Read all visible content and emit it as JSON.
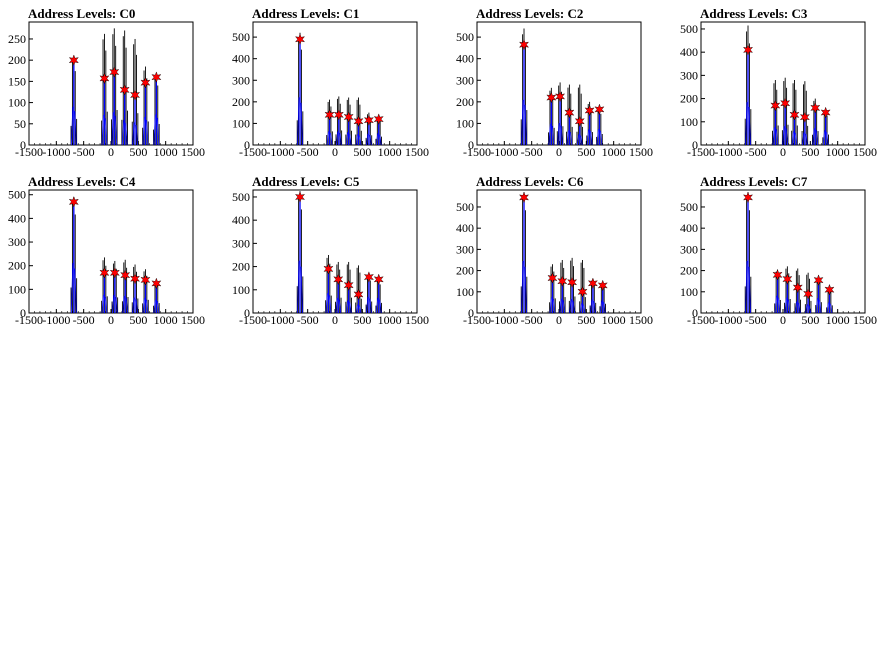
{
  "figure": {
    "background": "#ffffff"
  },
  "colors": {
    "histogram": "#000000",
    "fit": "#0000ff",
    "marker": "#ff0000"
  },
  "chart_data": [
    {
      "type": "histogram",
      "title": "Address Levels: C0",
      "xlim": [
        -1500,
        1500
      ],
      "ylim": [
        0,
        290
      ],
      "x_ticks": [
        -1500,
        -1000,
        -500,
        0,
        500,
        1000,
        1500
      ],
      "x_tick_labels": [
        "-1500",
        "-1000",
        "-500",
        "0",
        "500",
        "1000",
        "1500"
      ],
      "y_ticks": [
        0,
        50,
        100,
        150,
        200,
        250
      ],
      "peaks": [
        {
          "x": -680,
          "hist": 205,
          "fit": 200
        },
        {
          "x": -120,
          "hist": 262,
          "fit": 157
        },
        {
          "x": 60,
          "hist": 275,
          "fit": 172
        },
        {
          "x": 250,
          "hist": 270,
          "fit": 130
        },
        {
          "x": 440,
          "hist": 250,
          "fit": 118
        },
        {
          "x": 630,
          "hist": 185,
          "fit": 147
        },
        {
          "x": 830,
          "hist": 165,
          "fit": 160
        }
      ]
    },
    {
      "type": "histogram",
      "title": "Address Levels: C1",
      "xlim": [
        -1500,
        1500
      ],
      "ylim": [
        0,
        570
      ],
      "x_ticks": [
        -1500,
        -1000,
        -500,
        0,
        500,
        1000,
        1500
      ],
      "x_tick_labels": [
        "-1500",
        "-1000",
        "-500",
        "0",
        "500",
        "1000",
        "1500"
      ],
      "y_ticks": [
        0,
        100,
        200,
        300,
        400,
        500
      ],
      "peaks": [
        {
          "x": -640,
          "hist": 520,
          "fit": 490
        },
        {
          "x": -100,
          "hist": 210,
          "fit": 140
        },
        {
          "x": 70,
          "hist": 225,
          "fit": 140
        },
        {
          "x": 250,
          "hist": 220,
          "fit": 130
        },
        {
          "x": 430,
          "hist": 220,
          "fit": 110
        },
        {
          "x": 620,
          "hist": 150,
          "fit": 115
        },
        {
          "x": 800,
          "hist": 130,
          "fit": 120
        }
      ]
    },
    {
      "type": "histogram",
      "title": "Address Levels: C2",
      "xlim": [
        -1500,
        1500
      ],
      "ylim": [
        0,
        570
      ],
      "x_ticks": [
        -1500,
        -1000,
        -500,
        0,
        500,
        1000,
        1500
      ],
      "x_tick_labels": [
        "-1500",
        "-1000",
        "-500",
        "0",
        "500",
        "1000",
        "1500"
      ],
      "y_ticks": [
        0,
        100,
        200,
        300,
        400,
        500
      ],
      "peaks": [
        {
          "x": -640,
          "hist": 540,
          "fit": 465
        },
        {
          "x": -140,
          "hist": 265,
          "fit": 220
        },
        {
          "x": 20,
          "hist": 290,
          "fit": 225
        },
        {
          "x": 190,
          "hist": 280,
          "fit": 150
        },
        {
          "x": 380,
          "hist": 280,
          "fit": 110
        },
        {
          "x": 560,
          "hist": 200,
          "fit": 160
        },
        {
          "x": 740,
          "hist": 170,
          "fit": 165
        }
      ]
    },
    {
      "type": "histogram",
      "title": "Address Levels: C3",
      "xlim": [
        -1500,
        1500
      ],
      "ylim": [
        0,
        530
      ],
      "x_ticks": [
        -1500,
        -1000,
        -500,
        0,
        500,
        1000,
        1500
      ],
      "x_tick_labels": [
        "-1500",
        "-1000",
        "-500",
        "0",
        "500",
        "1000",
        "1500"
      ],
      "y_ticks": [
        0,
        100,
        200,
        300,
        400,
        500
      ],
      "peaks": [
        {
          "x": -640,
          "hist": 515,
          "fit": 410
        },
        {
          "x": -140,
          "hist": 280,
          "fit": 170
        },
        {
          "x": 40,
          "hist": 290,
          "fit": 180
        },
        {
          "x": 210,
          "hist": 280,
          "fit": 130
        },
        {
          "x": 400,
          "hist": 275,
          "fit": 120
        },
        {
          "x": 590,
          "hist": 200,
          "fit": 160
        },
        {
          "x": 780,
          "hist": 150,
          "fit": 140
        }
      ]
    },
    {
      "type": "histogram",
      "title": "Address Levels: C4",
      "xlim": [
        -1500,
        1500
      ],
      "ylim": [
        0,
        520
      ],
      "x_ticks": [
        -1500,
        -1000,
        -500,
        0,
        500,
        1000,
        1500
      ],
      "x_tick_labels": [
        "-1500",
        "-1000",
        "-500",
        "0",
        "500",
        "1000",
        "1500"
      ],
      "y_ticks": [
        0,
        100,
        200,
        300,
        400,
        500
      ],
      "peaks": [
        {
          "x": -680,
          "hist": 490,
          "fit": 470
        },
        {
          "x": -120,
          "hist": 235,
          "fit": 170
        },
        {
          "x": 70,
          "hist": 220,
          "fit": 170
        },
        {
          "x": 260,
          "hist": 225,
          "fit": 160
        },
        {
          "x": 440,
          "hist": 205,
          "fit": 145
        },
        {
          "x": 630,
          "hist": 185,
          "fit": 140
        },
        {
          "x": 830,
          "hist": 140,
          "fit": 125
        }
      ]
    },
    {
      "type": "histogram",
      "title": "Address Levels: C5",
      "xlim": [
        -1500,
        1500
      ],
      "ylim": [
        0,
        530
      ],
      "x_ticks": [
        -1500,
        -1000,
        -500,
        0,
        500,
        1000,
        1500
      ],
      "x_tick_labels": [
        "-1500",
        "-1000",
        "-500",
        "0",
        "500",
        "1000",
        "1500"
      ],
      "y_ticks": [
        0,
        100,
        200,
        300,
        400,
        500
      ],
      "peaks": [
        {
          "x": -640,
          "hist": 525,
          "fit": 500
        },
        {
          "x": -120,
          "hist": 250,
          "fit": 190
        },
        {
          "x": 60,
          "hist": 220,
          "fit": 145
        },
        {
          "x": 250,
          "hist": 220,
          "fit": 120
        },
        {
          "x": 430,
          "hist": 205,
          "fit": 80
        },
        {
          "x": 620,
          "hist": 165,
          "fit": 155
        },
        {
          "x": 800,
          "hist": 145,
          "fit": 145
        }
      ]
    },
    {
      "type": "histogram",
      "title": "Address Levels: C6",
      "xlim": [
        -1500,
        1500
      ],
      "ylim": [
        0,
        580
      ],
      "x_ticks": [
        -1500,
        -1000,
        -500,
        0,
        500,
        1000,
        1500
      ],
      "x_tick_labels": [
        "-1500",
        "-1000",
        "-500",
        "0",
        "500",
        "1000",
        "1500"
      ],
      "y_ticks": [
        0,
        100,
        200,
        300,
        400,
        500
      ],
      "peaks": [
        {
          "x": -640,
          "hist": 570,
          "fit": 545
        },
        {
          "x": -120,
          "hist": 230,
          "fit": 165
        },
        {
          "x": 60,
          "hist": 250,
          "fit": 150
        },
        {
          "x": 240,
          "hist": 260,
          "fit": 145
        },
        {
          "x": 430,
          "hist": 250,
          "fit": 100
        },
        {
          "x": 620,
          "hist": 160,
          "fit": 140
        },
        {
          "x": 800,
          "hist": 145,
          "fit": 130
        }
      ]
    },
    {
      "type": "histogram",
      "title": "Address Levels: C7",
      "xlim": [
        -1500,
        1500
      ],
      "ylim": [
        0,
        580
      ],
      "x_ticks": [
        -1500,
        -1000,
        -500,
        0,
        500,
        1000,
        1500
      ],
      "x_tick_labels": [
        "-1500",
        "-1000",
        "-500",
        "0",
        "500",
        "1000",
        "1500"
      ],
      "y_ticks": [
        0,
        100,
        200,
        300,
        400,
        500
      ],
      "peaks": [
        {
          "x": -640,
          "hist": 570,
          "fit": 545
        },
        {
          "x": -100,
          "hist": 205,
          "fit": 180
        },
        {
          "x": 80,
          "hist": 220,
          "fit": 160
        },
        {
          "x": 270,
          "hist": 210,
          "fit": 120
        },
        {
          "x": 460,
          "hist": 190,
          "fit": 90
        },
        {
          "x": 650,
          "hist": 170,
          "fit": 155
        },
        {
          "x": 850,
          "hist": 120,
          "fit": 110
        }
      ]
    }
  ]
}
